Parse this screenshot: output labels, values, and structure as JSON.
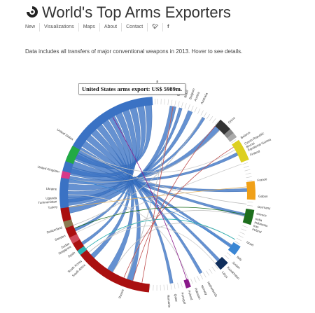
{
  "header": {
    "title": "World's Top Arms Exporters",
    "logo_icon": "spiral-logo-icon"
  },
  "nav": {
    "items": [
      "New",
      "Visualizations",
      "Maps",
      "About",
      "Contact"
    ],
    "twitter_icon": "twitter-icon",
    "facebook_icon": "facebook-icon"
  },
  "description": "Data includes all transfers of major conventional weapons in 2013. Hover to see details.",
  "tooltip": "United States arms export: US$ 5989m.",
  "chart": {
    "groups": [
      {
        "name": "United States",
        "start": 258,
        "end": 357,
        "color": "#3a72c4"
      },
      {
        "name": "Germany",
        "start": 40,
        "end": 48,
        "color": "#333333"
      },
      {
        "name": "Canada",
        "start": 48,
        "end": 51,
        "color": "#888888"
      },
      {
        "name": "Netherlands",
        "start": 51,
        "end": 54,
        "color": "#aaaaaa"
      },
      {
        "name": "China",
        "start": 56,
        "end": 69,
        "color": "#ddd020"
      },
      {
        "name": "France",
        "start": 82,
        "end": 93,
        "color": "#f0a018"
      },
      {
        "name": "Germany",
        "start": 99,
        "end": 108,
        "color": "#1d6e1d"
      },
      {
        "name": "Israel",
        "start": 122,
        "end": 128,
        "color": "#3a86d4"
      },
      {
        "name": "Italy",
        "start": 134,
        "end": 140,
        "color": "#0f2e5c"
      },
      {
        "name": "Ukraine",
        "start": 160,
        "end": 163,
        "color": "#8a1a8a"
      },
      {
        "name": "Russia",
        "start": 185,
        "end": 262,
        "color": "#aa1010"
      },
      {
        "name": "Spain",
        "start": 250,
        "end": 254,
        "color": "#8a7a50"
      },
      {
        "name": "Sweden",
        "start": 240,
        "end": 244,
        "color": "#d04a5a"
      },
      {
        "name": "Switzerland",
        "start": 232,
        "end": 235,
        "color": "#2ab0b0"
      },
      {
        "name": "Ukraine",
        "start": 280,
        "end": 284,
        "color": "#d83a8a"
      },
      {
        "name": "United Kingdom",
        "start": 290,
        "end": 300,
        "color": "#22aa44"
      }
    ],
    "labels": [
      {
        "text": "United States",
        "angle": 303
      },
      {
        "text": "United Kingdom",
        "angle": 283
      },
      {
        "text": "Ukraine",
        "angle": 273
      },
      {
        "text": "Uganda",
        "angle": 268
      },
      {
        "text": "Turkmenistan",
        "angle": 266
      },
      {
        "text": "Turkey",
        "angle": 263
      },
      {
        "text": "Switzerland",
        "angle": 251
      },
      {
        "text": "Sweden",
        "angle": 246
      },
      {
        "text": "Sudan",
        "angle": 241
      },
      {
        "text": "Singapore",
        "angle": 239
      },
      {
        "text": "Spain",
        "angle": 235
      },
      {
        "text": "South Korea",
        "angle": 229
      },
      {
        "text": "South Africa",
        "angle": 226
      },
      {
        "text": "Russia",
        "angle": 200
      },
      {
        "text": "China",
        "angle": 45
      },
      {
        "text": "Belarus",
        "angle": 56
      },
      {
        "text": "Czech Republic",
        "angle": 60
      },
      {
        "text": "Brunei",
        "angle": 62
      },
      {
        "text": "Equatorial Guinea",
        "angle": 64
      },
      {
        "text": "Finland",
        "angle": 67
      },
      {
        "text": "France",
        "angle": 82
      },
      {
        "text": "Gabon",
        "angle": 91
      },
      {
        "text": "Germany",
        "angle": 97
      },
      {
        "text": "Greece",
        "angle": 101
      },
      {
        "text": "India",
        "angle": 104
      },
      {
        "text": "Indonesia",
        "angle": 106
      },
      {
        "text": "Iran",
        "angle": 108
      },
      {
        "text": "Ireland",
        "angle": 110
      },
      {
        "text": "Israel",
        "angle": 118
      },
      {
        "text": "Italy",
        "angle": 128
      },
      {
        "text": "Jordan",
        "angle": 132
      },
      {
        "text": "Kazakhstan",
        "angle": 136
      },
      {
        "text": "Libya",
        "angle": 140
      },
      {
        "text": "Netherlands",
        "angle": 150
      },
      {
        "text": "Norway",
        "angle": 154
      },
      {
        "text": "Pakistan",
        "angle": 158
      },
      {
        "text": "Poland",
        "angle": 162
      },
      {
        "text": "Portugal",
        "angle": 166
      },
      {
        "text": "Qatar",
        "angle": 170
      },
      {
        "text": "Romania",
        "angle": 174
      },
      {
        "text": "Bulgaria",
        "angle": 12
      },
      {
        "text": "Brazil",
        "angle": 16
      },
      {
        "text": "Belgium",
        "angle": 19
      },
      {
        "text": "Austria",
        "angle": 22
      },
      {
        "text": "Australia",
        "angle": 26
      },
      {
        "text": "Argentina",
        "angle": 0
      },
      {
        "text": "Algeria",
        "angle": 4
      }
    ]
  }
}
